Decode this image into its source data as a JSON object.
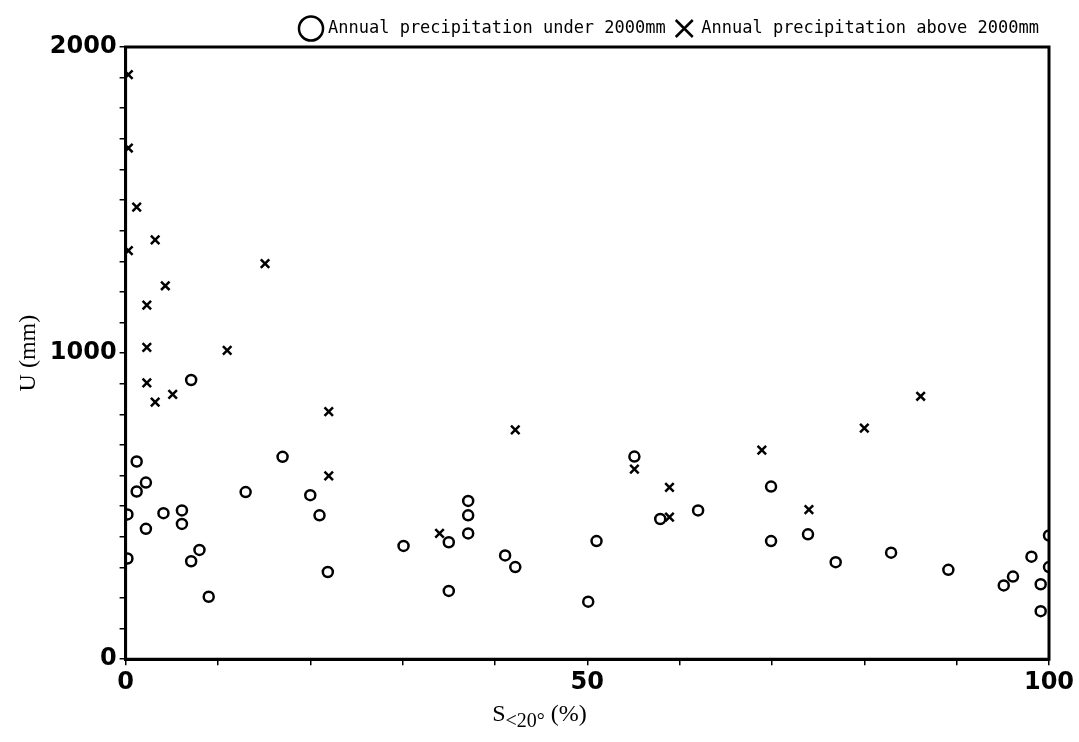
{
  "chart_data": {
    "type": "scatter",
    "xlabel": "S$_{<20°}$ (%)",
    "ylabel": "U (mm)",
    "legend": "top right",
    "grid": false,
    "xlim": [
      0,
      100
    ],
    "ylim": [
      0,
      2000
    ],
    "xticks": [
      0,
      {
        "value": 10,
        "label": null
      },
      {
        "value": 20,
        "label": null
      },
      {
        "value": 30,
        "label": null
      },
      {
        "value": 40,
        "label": null
      },
      50,
      {
        "value": 60,
        "label": null
      },
      {
        "value": 70,
        "label": null
      },
      {
        "value": 80,
        "label": null
      },
      {
        "value": 90,
        "label": null
      },
      100
    ],
    "yticks": [
      0,
      {
        "value": 100,
        "label": null
      },
      {
        "value": 200,
        "label": null
      },
      {
        "value": 300,
        "label": null
      },
      {
        "value": 400,
        "label": null
      },
      {
        "value": 500,
        "label": null
      },
      {
        "value": 600,
        "label": null
      },
      {
        "value": 700,
        "label": null
      },
      {
        "value": 800,
        "label": null
      },
      {
        "value": 900,
        "label": null
      },
      1000,
      {
        "value": 1100,
        "label": null
      },
      {
        "value": 1200,
        "label": null
      },
      {
        "value": 1300,
        "label": null
      },
      {
        "value": 1400,
        "label": null
      },
      {
        "value": 1500,
        "label": null
      },
      {
        "value": 1600,
        "label": null
      },
      {
        "value": 1700,
        "label": null
      },
      {
        "value": 1800,
        "label": null
      },
      {
        "value": 1900,
        "label": null
      },
      2000
    ],
    "series": [
      {
        "name": "Annual precipitation under 2000mm",
        "color": "#000000",
        "marker": "circle",
        "x": [
          0.2,
          0.2,
          1.2,
          1.2,
          2.2,
          2.2,
          4.1,
          6.1,
          6.1,
          7.1,
          7.1,
          8.0,
          9.0,
          13.0,
          17.0,
          20.0,
          21.0,
          21.9,
          30.1,
          35.0,
          35.0,
          37.1,
          37.1,
          37.1,
          41.1,
          42.2,
          50.1,
          51.0,
          55.1,
          57.9,
          62.0,
          69.9,
          69.9,
          73.9,
          76.9,
          82.9,
          89.1,
          95.1,
          96.1,
          98.1,
          99.1,
          99.1,
          100,
          100
        ],
        "values": [
          473,
          329,
          646,
          548,
          577,
          426,
          477,
          486,
          442,
          912,
          320,
          357,
          204,
          546,
          661,
          536,
          470,
          285,
          370,
          382,
          223,
          517,
          470,
          411,
          339,
          301,
          188,
          386,
          662,
          458,
          486,
          564,
          386,
          408,
          317,
          348,
          292,
          241,
          270,
          335,
          245,
          157,
          404,
          301
        ]
      },
      {
        "name": "Annual precipitation above 2000mm",
        "color": "#000000",
        "marker": "cross",
        "x": [
          0.3,
          0.3,
          0.3,
          1.2,
          3.2,
          4.3,
          2.3,
          2.3,
          2.3,
          3.2,
          5.1,
          11.0,
          15.1,
          22.0,
          22.0,
          34.0,
          42.2,
          55.1,
          58.9,
          58.9,
          68.9,
          80.0,
          86.1,
          74.0
        ],
        "values": [
          1910,
          1670,
          1335,
          1477,
          1370,
          1220,
          1157,
          1019,
          903,
          840,
          865,
          1009,
          1292,
          809,
          599,
          411,
          749,
          621,
          561,
          464,
          683,
          755,
          859,
          489
        ]
      }
    ]
  }
}
